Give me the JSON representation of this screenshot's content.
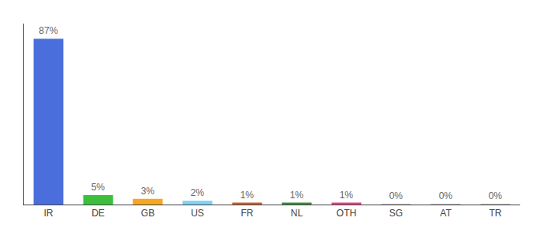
{
  "chart_data": {
    "type": "bar",
    "categories": [
      "IR",
      "DE",
      "GB",
      "US",
      "FR",
      "NL",
      "OTH",
      "SG",
      "AT",
      "TR"
    ],
    "values": [
      87,
      5,
      3,
      2,
      1,
      1,
      1,
      0.3,
      0.3,
      0.3
    ],
    "value_labels": [
      "87%",
      "5%",
      "3%",
      "2%",
      "1%",
      "1%",
      "1%",
      "0%",
      "0%",
      "0%"
    ],
    "colors": [
      "#4a6fdc",
      "#3dbf3d",
      "#f5a623",
      "#7dd4f0",
      "#c0622a",
      "#3a8c3a",
      "#e0448a",
      "#bbbbbb",
      "#bbbbbb",
      "#bbbbbb"
    ],
    "ylim": [
      0,
      95
    ],
    "grid": false,
    "data_labels": true,
    "tick_labels": "x"
  }
}
